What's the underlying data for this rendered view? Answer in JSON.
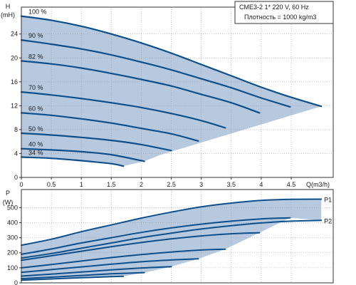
{
  "chart_data": [
    {
      "type": "line",
      "title": "",
      "ylabel_lines": [
        "H",
        "(mH)"
      ],
      "xlabel": "Q(m3/h)",
      "x_ticks": [
        0,
        0.5,
        1,
        1.5,
        2,
        2.5,
        3,
        3.5,
        4,
        4.5
      ],
      "y_ticks": [
        0,
        4,
        8,
        12,
        16,
        20,
        24
      ],
      "xlim": [
        0,
        5.2
      ],
      "ylim": [
        0,
        28.5
      ],
      "grid": true,
      "legend": {
        "position": "top-right",
        "lines": [
          "CME3-2    1* 220 V, 60 Hz",
          "Плотность = 1000 kg/m3"
        ]
      },
      "colors": {
        "curve": "#0d4f8b",
        "fill": "#b7c9df",
        "grid": "#9a9a9a"
      },
      "series": [
        {
          "name": "100 %",
          "x": [
            0,
            0.5,
            1,
            1.5,
            2,
            2.5,
            3,
            3.5,
            4,
            4.5,
            5.0
          ],
          "y": [
            27.0,
            26.3,
            25.3,
            24.0,
            22.5,
            20.8,
            18.9,
            17.0,
            15.1,
            13.4,
            11.9
          ]
        },
        {
          "name": "90 %",
          "x": [
            0,
            0.5,
            1,
            1.5,
            2,
            2.5,
            3,
            3.5,
            4,
            4.48
          ],
          "y": [
            23.0,
            22.3,
            21.5,
            20.5,
            19.3,
            18.0,
            16.5,
            15.0,
            13.3,
            11.8
          ]
        },
        {
          "name": "82 %",
          "x": [
            0,
            0.5,
            1,
            1.5,
            2,
            2.5,
            3,
            3.5,
            3.97
          ],
          "y": [
            19.5,
            19.0,
            18.3,
            17.4,
            16.4,
            15.3,
            13.9,
            12.5,
            10.8
          ]
        },
        {
          "name": "70 %",
          "x": [
            0,
            0.5,
            1,
            1.5,
            2,
            2.5,
            3,
            3.4
          ],
          "y": [
            14.3,
            13.8,
            13.2,
            12.5,
            11.7,
            10.7,
            9.5,
            8.3
          ]
        },
        {
          "name": "60 %",
          "x": [
            0,
            0.5,
            1,
            1.5,
            2,
            2.5,
            2.95
          ],
          "y": [
            10.8,
            10.4,
            9.8,
            9.1,
            8.2,
            7.3,
            6.1
          ]
        },
        {
          "name": "50 %",
          "x": [
            0,
            0.5,
            1,
            1.5,
            2,
            2.5
          ],
          "y": [
            7.4,
            7.1,
            6.7,
            6.2,
            5.5,
            4.5
          ]
        },
        {
          "name": "40 %",
          "x": [
            0,
            0.5,
            1,
            1.5,
            2.05
          ],
          "y": [
            4.8,
            4.6,
            4.3,
            3.8,
            2.7
          ]
        },
        {
          "name": "34 %",
          "x": [
            0,
            0.5,
            1,
            1.5,
            1.7
          ],
          "y": [
            3.4,
            3.2,
            2.8,
            2.3,
            1.9
          ]
        }
      ]
    },
    {
      "type": "line",
      "title": "",
      "ylabel_lines": [
        "P",
        "(W)"
      ],
      "xlabel": "",
      "x_ticks": [],
      "y_ticks": [
        0,
        100,
        200,
        300,
        400,
        500
      ],
      "xlim": [
        0,
        5.2
      ],
      "ylim": [
        0,
        620
      ],
      "grid": true,
      "colors": {
        "curve": "#0d4f8b",
        "fill": "#b7c9df",
        "grid": "#9a9a9a"
      },
      "series": [
        {
          "name": "P1",
          "x": [
            0,
            0.5,
            1,
            1.5,
            2,
            2.5,
            3,
            3.5,
            4,
            4.5,
            5.0
          ],
          "y": [
            250,
            290,
            340,
            385,
            430,
            470,
            505,
            530,
            548,
            555,
            556
          ]
        },
        {
          "name": "P2",
          "x": [
            0,
            0.5,
            1,
            1.5,
            2,
            2.5,
            3,
            3.5,
            4,
            4.5,
            5.0
          ],
          "y": [
            165,
            195,
            230,
            265,
            300,
            330,
            358,
            380,
            398,
            410,
            415
          ]
        },
        {
          "name": "",
          "x": [
            0,
            0.5,
            1,
            1.5,
            2,
            2.5,
            3,
            3.5,
            4,
            4.48
          ],
          "y": [
            190,
            225,
            265,
            300,
            335,
            365,
            390,
            410,
            425,
            432
          ]
        },
        {
          "name": "",
          "x": [
            0,
            0.5,
            1,
            1.5,
            2,
            2.5,
            3,
            3.5,
            3.97
          ],
          "y": [
            150,
            180,
            210,
            240,
            268,
            292,
            312,
            326,
            333
          ]
        },
        {
          "name": "",
          "x": [
            0,
            0.5,
            1,
            1.5,
            2,
            2.5,
            3,
            3.4
          ],
          "y": [
            100,
            122,
            145,
            168,
            188,
            205,
            218,
            224
          ]
        },
        {
          "name": "",
          "x": [
            0,
            0.5,
            1,
            1.5,
            2,
            2.5,
            2.95
          ],
          "y": [
            70,
            88,
            106,
            124,
            140,
            152,
            160
          ]
        },
        {
          "name": "",
          "x": [
            0,
            0.5,
            1,
            1.5,
            2,
            2.5
          ],
          "y": [
            45,
            58,
            72,
            86,
            99,
            108
          ]
        },
        {
          "name": "",
          "x": [
            0,
            0.5,
            1,
            1.5,
            2.05
          ],
          "y": [
            28,
            38,
            49,
            60,
            68
          ]
        },
        {
          "name": "",
          "x": [
            0,
            0.5,
            1,
            1.5,
            1.7
          ],
          "y": [
            18,
            26,
            34,
            41,
            44
          ]
        }
      ]
    }
  ]
}
